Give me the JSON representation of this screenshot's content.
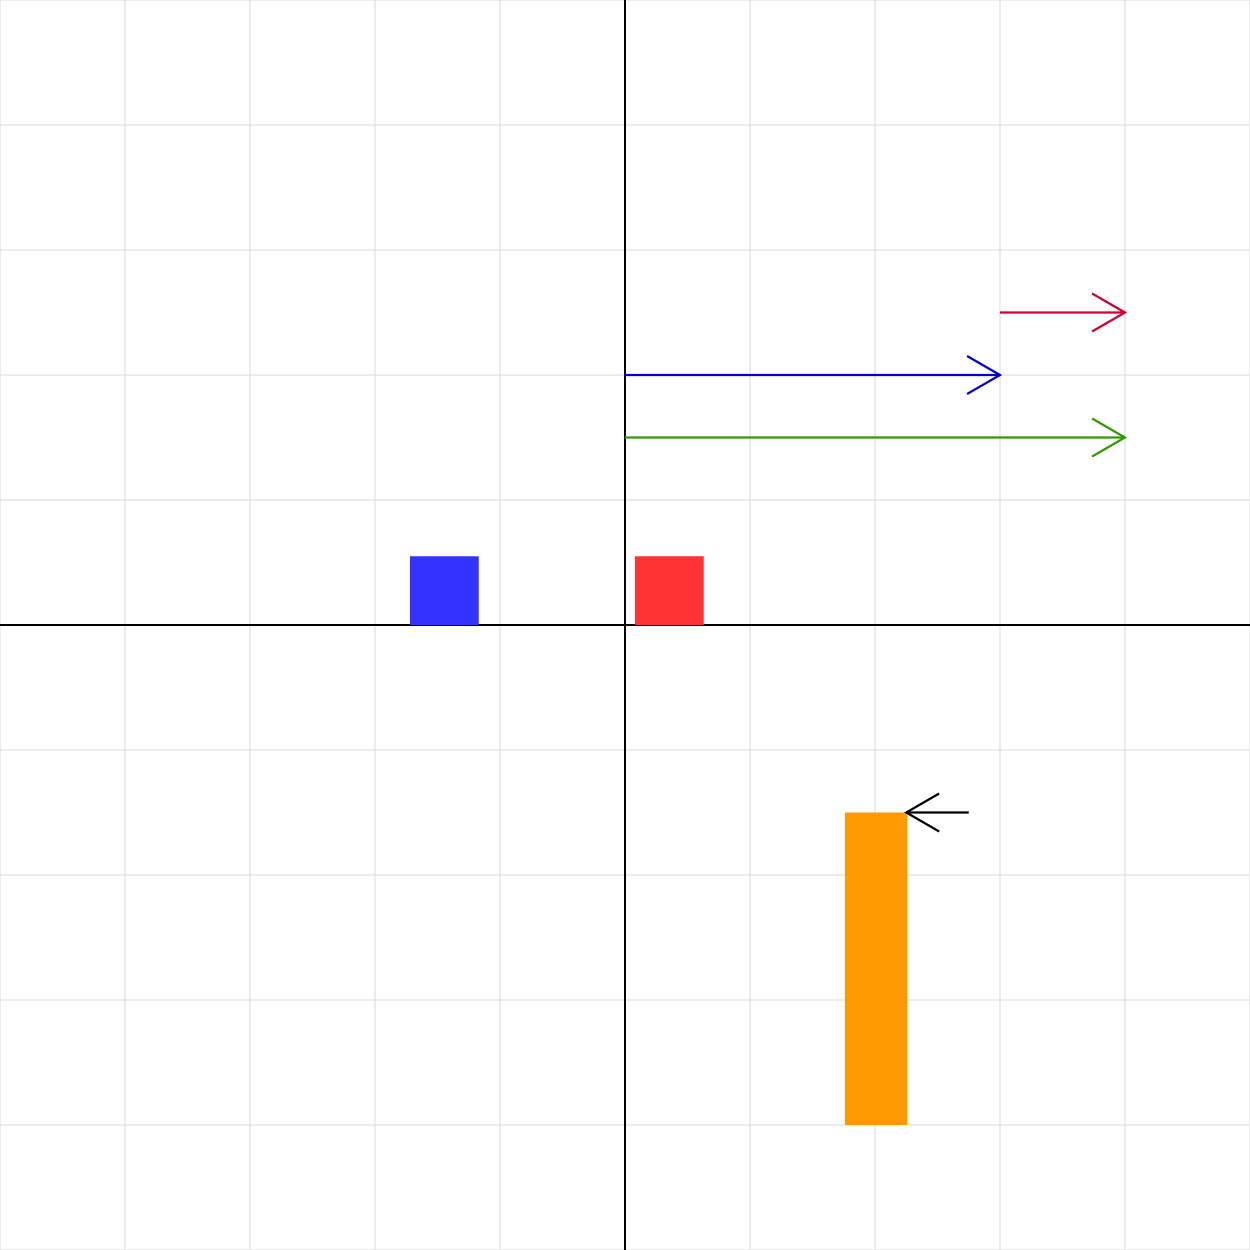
{
  "colors": {
    "background": "#ffffff",
    "grid": "#d8d8d8",
    "axis": "#000000"
  },
  "scene": {
    "x_range": [
      -5,
      5
    ],
    "y_range": [
      -5,
      5
    ],
    "grid_step": 1,
    "grid": true,
    "axes": true
  },
  "rectangles": [
    {
      "name": "blue-square",
      "x": -1.72,
      "y": 0,
      "width": 0.55,
      "height": 0.55,
      "color": "#3333ff"
    },
    {
      "name": "red-square",
      "x": 0.08,
      "y": 0,
      "width": 0.55,
      "height": 0.55,
      "color": "#ff3333"
    },
    {
      "name": "orange-bar",
      "x": 1.76,
      "y": -4,
      "width": 0.5,
      "height": 2.5,
      "color": "#ff9900"
    }
  ],
  "vectors": [
    {
      "name": "crimson-vector",
      "from": [
        3,
        2.5
      ],
      "to": [
        4,
        2.5
      ],
      "color": "#cc0033"
    },
    {
      "name": "blue-vector",
      "from": [
        0,
        2
      ],
      "to": [
        3,
        2
      ],
      "color": "#0000cc"
    },
    {
      "name": "green-vector",
      "from": [
        0,
        1.5
      ],
      "to": [
        4,
        1.5
      ],
      "color": "#339900"
    },
    {
      "name": "black-vector",
      "from": [
        2.75,
        -1.5
      ],
      "to": [
        2.25,
        -1.5
      ],
      "color": "#000000"
    }
  ]
}
